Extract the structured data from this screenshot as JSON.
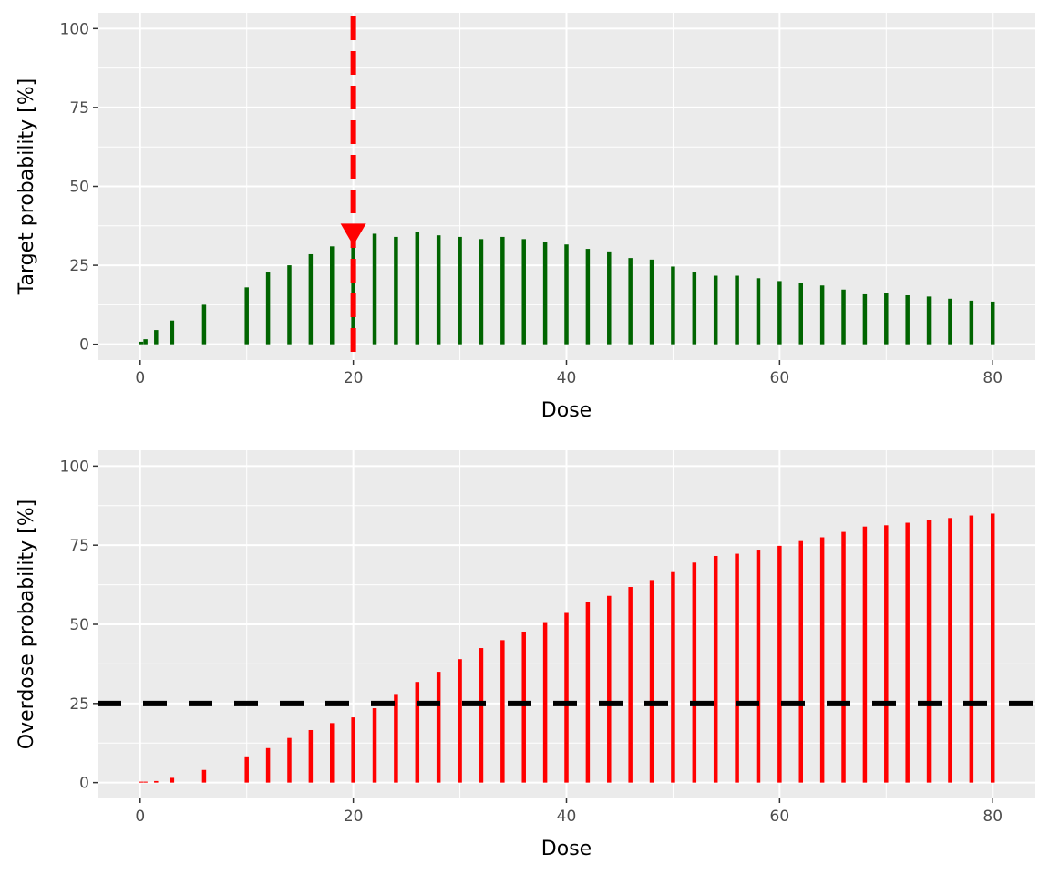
{
  "chart_data": [
    {
      "type": "bar",
      "xlabel": "Dose",
      "ylabel": "Target probability [%]",
      "xlim": [
        -4,
        84
      ],
      "ylim": [
        -5,
        105
      ],
      "xticks": [
        0,
        20,
        40,
        60,
        80
      ],
      "yticks": [
        0,
        25,
        50,
        75,
        100
      ],
      "grid": true,
      "bar_color": "#006400",
      "x": [
        0.1,
        0.5,
        1.5,
        3,
        6,
        10,
        12,
        14,
        16,
        18,
        20,
        22,
        24,
        26,
        28,
        30,
        32,
        34,
        36,
        38,
        40,
        42,
        44,
        46,
        48,
        50,
        52,
        54,
        56,
        58,
        60,
        62,
        64,
        66,
        68,
        70,
        72,
        74,
        76,
        78,
        80
      ],
      "values": [
        0.8,
        1.6,
        4.5,
        7.5,
        12.5,
        18,
        23,
        25,
        28.5,
        31,
        33,
        35,
        34,
        35.5,
        34.5,
        34,
        33.3,
        34,
        33.3,
        32.5,
        31.6,
        30.2,
        29.4,
        27.3,
        26.8,
        24.6,
        23,
        21.7,
        21.7,
        20.9,
        20,
        19.5,
        18.6,
        17.3,
        15.8,
        16.3,
        15.5,
        15.1,
        14.4,
        13.8,
        13.5
      ],
      "vline": {
        "x": 20,
        "color": "#FF0000",
        "style": "dashed"
      },
      "marker": {
        "x": 20,
        "y": 33,
        "shape": "down-triangle",
        "color": "#FF0000"
      }
    },
    {
      "type": "bar",
      "xlabel": "Dose",
      "ylabel": "Overdose probability [%]",
      "xlim": [
        -4,
        84
      ],
      "ylim": [
        -5,
        105
      ],
      "xticks": [
        0,
        20,
        40,
        60,
        80
      ],
      "yticks": [
        0,
        25,
        50,
        75,
        100
      ],
      "grid": true,
      "bar_color": "#FF0000",
      "x": [
        0.1,
        0.5,
        1.5,
        3,
        6,
        10,
        12,
        14,
        16,
        18,
        20,
        22,
        24,
        26,
        28,
        30,
        32,
        34,
        36,
        38,
        40,
        42,
        44,
        46,
        48,
        50,
        52,
        54,
        56,
        58,
        60,
        62,
        64,
        66,
        68,
        70,
        72,
        74,
        76,
        78,
        80
      ],
      "values": [
        0.3,
        0.3,
        0.5,
        1.5,
        4,
        8.3,
        10.9,
        14.1,
        16.6,
        18.8,
        20.6,
        23.5,
        28,
        31.8,
        35,
        39,
        42.5,
        45,
        47.7,
        50.7,
        53.6,
        57.2,
        59,
        61.8,
        64,
        66.5,
        69.5,
        71.6,
        72.3,
        73.6,
        74.8,
        76.3,
        77.5,
        79.2,
        80.9,
        81.3,
        82.1,
        82.9,
        83.6,
        84.4,
        85
      ],
      "hline": {
        "y": 25,
        "color": "#000000",
        "style": "dashed"
      }
    }
  ]
}
